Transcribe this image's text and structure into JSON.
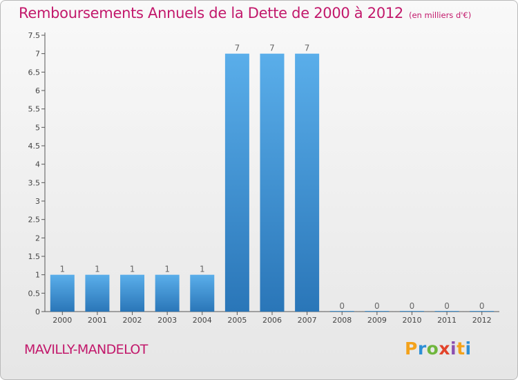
{
  "chart_data": {
    "type": "bar",
    "title": "Remboursements Annuels de la Dette de 2000 à 2012",
    "subtitle": "(en milliers d'€)",
    "categories": [
      "2000",
      "2001",
      "2002",
      "2003",
      "2004",
      "2005",
      "2006",
      "2007",
      "2008",
      "2009",
      "2010",
      "2011",
      "2012"
    ],
    "values": [
      1,
      1,
      1,
      1,
      1,
      7,
      7,
      7,
      0,
      0,
      0,
      0,
      0
    ],
    "data_labels": [
      "1",
      "1",
      "1",
      "1",
      "1",
      "7",
      "7",
      "7",
      "0",
      "0",
      "0",
      "0",
      "0"
    ],
    "ylim": [
      0,
      7.5
    ],
    "yticks": [
      "0",
      "0.5",
      "1",
      "1.5",
      "2",
      "2.5",
      "3",
      "3.5",
      "4",
      "4.5",
      "5",
      "5.5",
      "6",
      "6.5",
      "7",
      "7.5"
    ],
    "xlabel": "",
    "ylabel": "",
    "grid": false,
    "bar_color": "#3f8fd6"
  },
  "footer": {
    "town": "MAVILLY-MANDELOT",
    "logo_letters": [
      "P",
      "r",
      "o",
      "x",
      "i",
      "t",
      "i"
    ],
    "logo_colors": [
      "#f3a21b",
      "#2d8fd6",
      "#6fb63d",
      "#e2432a",
      "#8c4fb0",
      "#f3a21b",
      "#2d8fd6"
    ]
  },
  "theme": {
    "accent": "#c2186b"
  }
}
